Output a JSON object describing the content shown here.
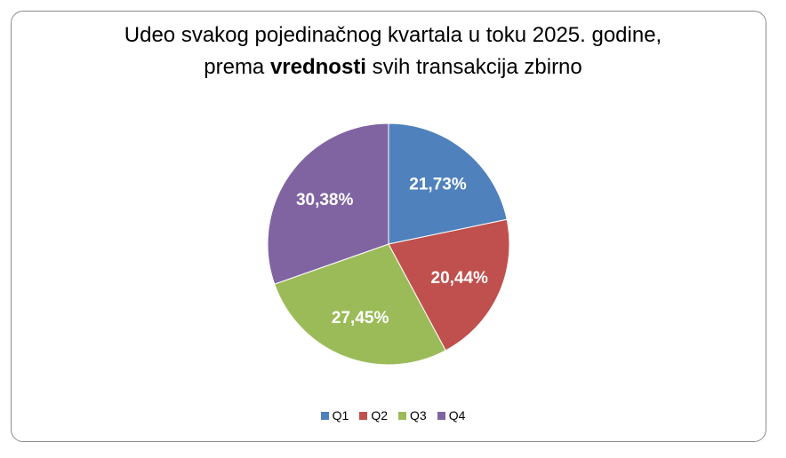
{
  "chart_data": {
    "type": "pie",
    "title_line1": "Udeo svakog pojedinačnog kvartala u toku 2025. godine,",
    "title_line2_pre": "prema ",
    "title_line2_bold": "vrednosti",
    "title_line2_post": " svih transakcija zbirno",
    "slices": [
      {
        "name": "Q1",
        "value": 21.73,
        "label": "21,73%",
        "color": "#4F81BD"
      },
      {
        "name": "Q2",
        "value": 20.44,
        "label": "20,44%",
        "color": "#C0504D"
      },
      {
        "name": "Q3",
        "value": 27.45,
        "label": "27,45%",
        "color": "#9BBB59"
      },
      {
        "name": "Q4",
        "value": 30.38,
        "label": "30,38%",
        "color": "#8064A2"
      }
    ],
    "legend_position": "bottom"
  }
}
